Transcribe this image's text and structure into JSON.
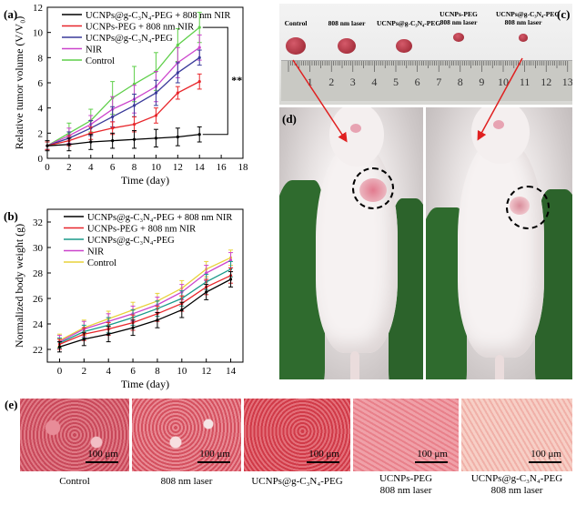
{
  "chart_data": [
    {
      "type": "line",
      "panel": "(a)",
      "xlabel": "Time (day)",
      "ylabel": "Relative tumor volume (V/V₀)",
      "xlim": [
        0,
        18
      ],
      "ylim": [
        0,
        12
      ],
      "xticks": [
        0,
        2,
        4,
        6,
        8,
        10,
        12,
        14,
        16,
        18
      ],
      "yticks": [
        0,
        2,
        4,
        6,
        8,
        10,
        12
      ],
      "x": [
        0,
        2,
        4,
        6,
        8,
        10,
        12,
        14
      ],
      "series": [
        {
          "name": "UCNPs@g-C₃N₄-PEG + 808 nm NIR",
          "color": "#000000",
          "values": [
            1.0,
            1.1,
            1.3,
            1.4,
            1.5,
            1.6,
            1.7,
            1.9
          ],
          "err": [
            0.4,
            0.5,
            0.6,
            0.6,
            0.7,
            0.7,
            0.7,
            0.6
          ]
        },
        {
          "name": "UCNPs-PEG + 808 nm NIR",
          "color": "#e8262b",
          "values": [
            1.0,
            1.4,
            2.0,
            2.4,
            2.7,
            3.4,
            5.2,
            6.1
          ],
          "err": [
            0.3,
            0.4,
            0.5,
            0.5,
            0.6,
            0.6,
            0.5,
            0.6
          ]
        },
        {
          "name": "UCNPs@g-C₃N₄-PEG",
          "color": "#3a3a9a",
          "values": [
            1.0,
            1.6,
            2.4,
            3.3,
            4.2,
            5.2,
            6.8,
            8.0
          ],
          "err": [
            0.3,
            0.5,
            0.6,
            0.8,
            0.9,
            1.0,
            0.8,
            0.6
          ]
        },
        {
          "name": "NIR",
          "color": "#cc44cc",
          "values": [
            1.0,
            1.8,
            2.7,
            3.9,
            4.7,
            5.7,
            7.6,
            8.8
          ],
          "err": [
            0.3,
            0.6,
            0.7,
            1.0,
            1.1,
            1.2,
            1.2,
            1.0
          ]
        },
        {
          "name": "Control",
          "color": "#5fcf4a",
          "values": [
            1.0,
            2.0,
            3.0,
            4.8,
            5.9,
            6.9,
            9.0,
            10.4
          ],
          "err": [
            0.3,
            0.8,
            0.9,
            1.3,
            1.4,
            1.5,
            1.3,
            1.2
          ]
        }
      ],
      "annotation": "**"
    },
    {
      "type": "line",
      "panel": "(b)",
      "xlabel": "Time (day)",
      "ylabel": "Normalized body weight (g)",
      "xlim": [
        -1,
        15
      ],
      "ylim": [
        21,
        33
      ],
      "xticks": [
        0,
        2,
        4,
        6,
        8,
        10,
        12,
        14
      ],
      "yticks": [
        22,
        24,
        26,
        28,
        30,
        32
      ],
      "x": [
        0,
        2,
        4,
        6,
        8,
        10,
        12,
        14
      ],
      "series": [
        {
          "name": "UCNPs@g-C₃N₄-PEG + 808 nm NIR",
          "color": "#000000",
          "values": [
            22.2,
            22.8,
            23.2,
            23.7,
            24.3,
            25.1,
            26.5,
            27.5
          ],
          "err": [
            0.4,
            0.5,
            0.6,
            0.6,
            0.6,
            0.6,
            0.6,
            0.6
          ]
        },
        {
          "name": "UCNPs-PEG + 808 nm NIR",
          "color": "#e8262b",
          "values": [
            22.4,
            23.2,
            23.6,
            24.1,
            24.8,
            25.6,
            26.9,
            27.8
          ],
          "err": [
            0.4,
            0.5,
            0.5,
            0.6,
            0.6,
            0.6,
            0.6,
            0.6
          ]
        },
        {
          "name": "UCNPs@g-C₃N₄-PEG",
          "color": "#1a9a8a",
          "values": [
            22.5,
            23.4,
            23.9,
            24.5,
            25.2,
            26.0,
            27.3,
            28.3
          ],
          "err": [
            0.4,
            0.5,
            0.6,
            0.6,
            0.6,
            0.6,
            0.6,
            0.6
          ]
        },
        {
          "name": "NIR",
          "color": "#cc44cc",
          "values": [
            22.6,
            23.6,
            24.2,
            24.8,
            25.5,
            26.5,
            28.0,
            29.0
          ],
          "err": [
            0.5,
            0.6,
            0.6,
            0.6,
            0.6,
            0.6,
            0.6,
            0.6
          ]
        },
        {
          "name": "Control",
          "color": "#e8d23a",
          "values": [
            22.7,
            23.7,
            24.4,
            25.1,
            25.8,
            26.8,
            28.3,
            29.2
          ],
          "err": [
            0.5,
            0.6,
            0.6,
            0.6,
            0.6,
            0.6,
            0.6,
            0.6
          ]
        }
      ]
    }
  ],
  "panel_c": {
    "label": "(c)",
    "tumor_labels": [
      "Control",
      "808 nm laser",
      "UCNPs@g-C₃N₄-PEG",
      "UCNPs-PEG",
      "UCNPs@g-C₃N₄-PEG"
    ],
    "tumor_sublabels": [
      "",
      "",
      "",
      "808 nm laser",
      "808 nm laser"
    ],
    "ruler_numbers": [
      "1",
      "2",
      "3",
      "4",
      "5",
      "6",
      "7",
      "8",
      "9",
      "10",
      "11",
      "12",
      "13"
    ]
  },
  "panel_d": {
    "label": "(d)"
  },
  "panel_e": {
    "label": "(e)",
    "scale_bar": "100 μm",
    "captions": [
      {
        "line1": "Control",
        "line2": ""
      },
      {
        "line1": "808 nm laser",
        "line2": ""
      },
      {
        "line1": "UCNPs@g-C₃N₄-PEG",
        "line2": ""
      },
      {
        "line1": "UCNPs-PEG",
        "line2": "808 nm laser"
      },
      {
        "line1": "UCNPs@g-C₃N₄-PEG",
        "line2": "808 nm laser"
      }
    ]
  },
  "colors": {
    "tissue_pink": "#d9707a",
    "tissue_dark": "#a8323f",
    "glove_green": "#2f6b2e",
    "ruler": "#c9c9c4"
  }
}
